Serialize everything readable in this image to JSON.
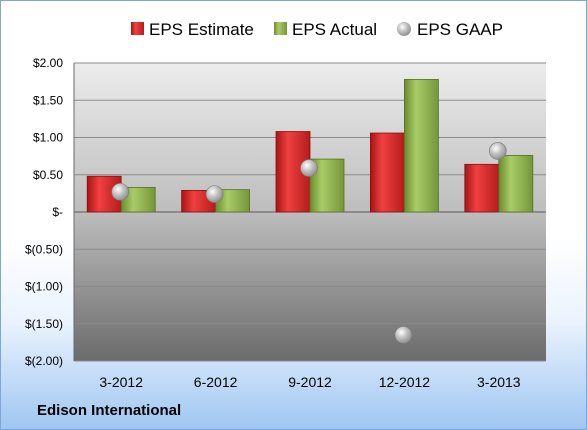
{
  "company": "Edison International",
  "chart_data": {
    "type": "bar",
    "categories": [
      "3-2012",
      "6-2012",
      "9-2012",
      "12-2012",
      "3-2013"
    ],
    "series": [
      {
        "name": "EPS Estimate",
        "kind": "bar",
        "color": "#d42a2a",
        "values": [
          0.48,
          0.29,
          1.08,
          1.06,
          0.64
        ]
      },
      {
        "name": "EPS Actual",
        "kind": "bar",
        "color": "#8bb04a",
        "values": [
          0.33,
          0.3,
          0.71,
          1.78,
          0.76
        ]
      },
      {
        "name": "EPS GAAP",
        "kind": "marker",
        "color": "#b8b8b8",
        "values": [
          0.27,
          0.24,
          0.59,
          -1.65,
          0.82
        ]
      }
    ],
    "y_ticks": [
      2.0,
      1.5,
      1.0,
      0.5,
      0,
      -0.5,
      -1.0,
      -1.5,
      -2.0
    ],
    "y_tick_labels": [
      "$2.00",
      "$1.50",
      "$1.00",
      "$0.50",
      "$-",
      "$(0.50)",
      "$(1.00)",
      "$(1.50)",
      "$(2.00)"
    ],
    "ylim": [
      -2.0,
      2.0
    ],
    "grid": true,
    "legend_position": "top"
  }
}
